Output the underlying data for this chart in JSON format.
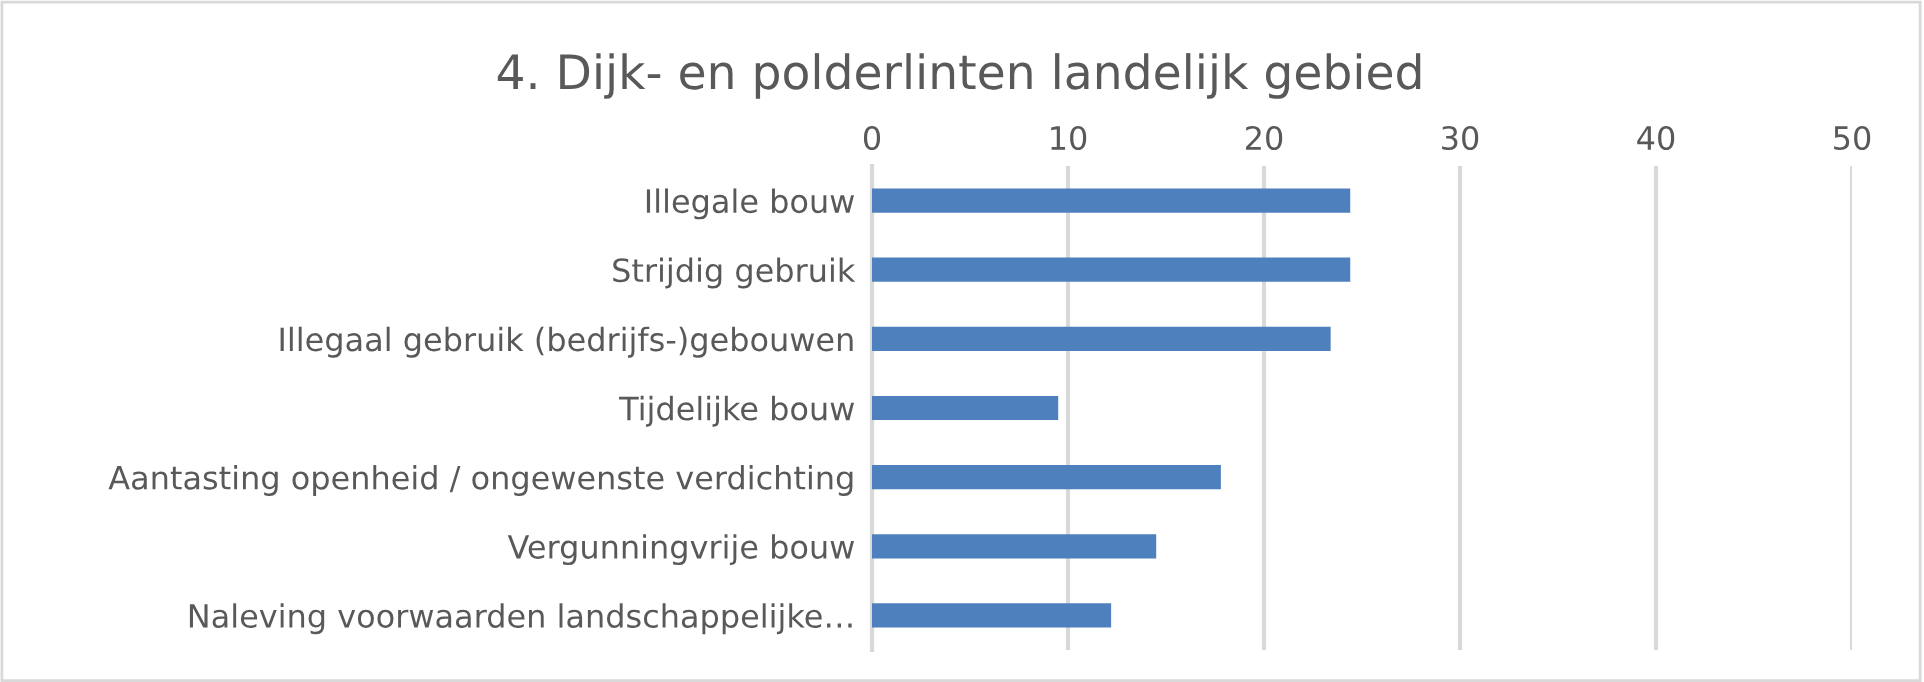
{
  "chart_data": {
    "type": "bar",
    "orientation": "horizontal",
    "title": "4. Dijk- en polderlinten landelijk gebied",
    "categories": [
      "Illegale bouw",
      "Strijdig gebruik",
      "Illegaal gebruik (bedrijfs-)gebouwen",
      "Tijdelijke bouw",
      "Aantasting openheid / ongewenste verdichting",
      "Vergunningvrije bouw",
      "Naleving voorwaarden landschappelijke…"
    ],
    "values": [
      24.4,
      24.4,
      23.4,
      9.5,
      17.8,
      14.5,
      12.2
    ],
    "color": "#4e80bd",
    "xlim": [
      0,
      50
    ],
    "xticks": [
      0,
      10,
      20,
      30,
      40,
      50
    ],
    "grid": "x"
  }
}
